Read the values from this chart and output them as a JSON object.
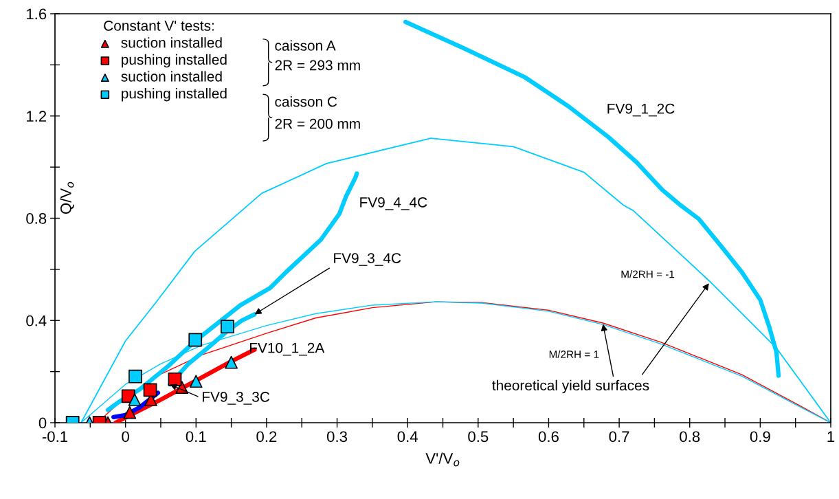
{
  "chart_data": {
    "type": "line",
    "xlabel": "V'/V$_{o}$",
    "ylabel": "Q/V$_{o}$",
    "legend_title": "Constant V' tests:",
    "xlim": [
      -0.1,
      1
    ],
    "ylim": [
      0,
      1.6
    ],
    "xticks": [
      -0.1,
      {
        "value": -0.05,
        "label": null
      },
      0,
      {
        "value": 0.05,
        "label": null
      },
      0.1,
      {
        "value": 0.15,
        "label": null
      },
      0.2,
      {
        "value": 0.25,
        "label": null
      },
      0.3,
      {
        "value": 0.35,
        "label": null
      },
      0.4,
      {
        "value": 0.45,
        "label": null
      },
      0.5,
      {
        "value": 0.55,
        "label": null
      },
      0.6,
      {
        "value": 0.65,
        "label": null
      },
      0.7,
      {
        "value": 0.75,
        "label": null
      },
      0.8,
      {
        "value": 0.85,
        "label": null
      },
      0.9,
      {
        "value": 0.95,
        "label": null
      },
      1
    ],
    "yticks": [
      0,
      {
        "value": 0.2,
        "label": null
      },
      0.4,
      {
        "value": 0.6,
        "label": null
      },
      0.8,
      {
        "value": 1.0,
        "label": null
      },
      1.2,
      {
        "value": 1.4,
        "label": null
      },
      1.6
    ],
    "grid": false,
    "legend": "top left",
    "series": [
      {
        "color": "#00ccff",
        "marker": "none",
        "x": [
          -0.063,
          0.0,
          0.043,
          0.098,
          0.193,
          0.285,
          0.433,
          0.55,
          0.65,
          0.706,
          0.72,
          0.828,
          0.923,
          1.0
        ],
        "values": [
          0,
          0.32,
          0.47,
          0.67,
          0.897,
          1.014,
          1.113,
          1.08,
          0.98,
          0.851,
          0.83,
          0.554,
          0.292,
          0
        ]
      },
      {
        "color": "#ff0000",
        "marker": "none",
        "x": [
          -0.04,
          0.0,
          0.05,
          0.108,
          0.2,
          0.27,
          0.35,
          0.44,
          0.505,
          0.6,
          0.677,
          0.759,
          0.874,
          0.959,
          1.0
        ],
        "values": [
          0,
          0.1,
          0.19,
          0.265,
          0.35,
          0.41,
          0.45,
          0.473,
          0.47,
          0.44,
          0.39,
          0.315,
          0.188,
          0.062,
          0
        ]
      },
      {
        "color": "#00ccff",
        "marker": "none",
        "x": [
          -0.063,
          0.0,
          0.05,
          0.108,
          0.2,
          0.27,
          0.35,
          0.44,
          0.505,
          0.6,
          0.677,
          0.759,
          0.874,
          0.959,
          1.0
        ],
        "values": [
          0,
          0.15,
          0.23,
          0.303,
          0.38,
          0.427,
          0.46,
          0.473,
          0.468,
          0.436,
          0.384,
          0.308,
          0.182,
          0.058,
          0
        ]
      },
      {
        "color": "#00ccff",
        "marker": "none",
        "x": [
          0.397,
          0.479,
          0.566,
          0.628,
          0.685,
          0.725,
          0.761,
          0.787,
          0.813,
          0.845,
          0.874,
          0.9,
          0.913,
          0.923,
          0.926
        ],
        "values": [
          1.568,
          1.466,
          1.352,
          1.238,
          1.117,
          1.018,
          0.911,
          0.851,
          0.797,
          0.689,
          0.589,
          0.481,
          0.373,
          0.276,
          0.184
        ]
      },
      {
        "color": "#00ccff",
        "marker": "none",
        "x": [
          -0.025,
          -0.01,
          0.02,
          0.06,
          0.099,
          0.163,
          0.205,
          0.228,
          0.277,
          0.303,
          0.313,
          0.326,
          0.328
        ],
        "values": [
          0.05,
          0.08,
          0.13,
          0.22,
          0.32,
          0.46,
          0.527,
          0.59,
          0.716,
          0.816,
          0.887,
          0.959,
          0.975
        ]
      },
      {
        "color": "#00ccff",
        "marker": "none",
        "x": [
          0.063,
          0.089,
          0.12,
          0.145,
          0.165,
          0.183
        ],
        "values": [
          0.15,
          0.23,
          0.3,
          0.36,
          0.4,
          0.424
        ]
      },
      {
        "color": "#ff0000",
        "marker": "none",
        "x": [
          -0.014,
          0.0,
          0.05,
          0.1,
          0.15,
          0.183
        ],
        "values": [
          0,
          0.02,
          0.09,
          0.165,
          0.24,
          0.286
        ]
      },
      {
        "color": "#0000ff",
        "marker": "none",
        "x": [
          -0.017,
          0.0,
          0.02,
          0.046
        ],
        "values": [
          0.022,
          0.03,
          0.06,
          0.117
        ]
      },
      {
        "type": "scatter",
        "name": "suction installed",
        "color": "#ff0000",
        "marker": "triangle",
        "x": [
          -0.025,
          0.006,
          0.036,
          0.08
        ],
        "values": [
          0,
          0.04,
          0.09,
          0.138
        ]
      },
      {
        "type": "scatter",
        "name": "pushing installed",
        "color": "#ff0000",
        "marker": "square",
        "x": [
          -0.037,
          0.004,
          0.035,
          0.07
        ],
        "values": [
          0,
          0.104,
          0.128,
          0.17
        ]
      },
      {
        "type": "scatter",
        "name": "suction installed",
        "color": "#00ccff",
        "marker": "triangle",
        "x": [
          -0.051,
          0.013,
          0.1,
          0.15
        ],
        "values": [
          0,
          0.09,
          0.162,
          0.236
        ]
      },
      {
        "type": "scatter",
        "name": "pushing installed",
        "color": "#00ccff",
        "marker": "square",
        "x": [
          -0.075,
          0.014,
          0.099,
          0.1445
        ],
        "values": [
          0,
          0.181,
          0.324,
          0.376
        ]
      }
    ],
    "annotations": [
      "FV9_1_2C",
      "FV9_4_4C",
      {
        "text": "FV9_3_4C",
        "x": 0.183,
        "y": 0.424
      },
      "FV10_1_2A",
      {
        "text": "FV9_3_3C",
        "x": 0.063,
        "y": 0.15
      },
      {
        "text": "theoretical yield surfaces",
        "x": 0.677,
        "y": 0.386
      },
      "M/2RH = 1",
      "M/2RH = -1",
      "caisson A",
      "2R = 293 mm",
      "caisson C",
      "2R = 200 mm"
    ]
  }
}
